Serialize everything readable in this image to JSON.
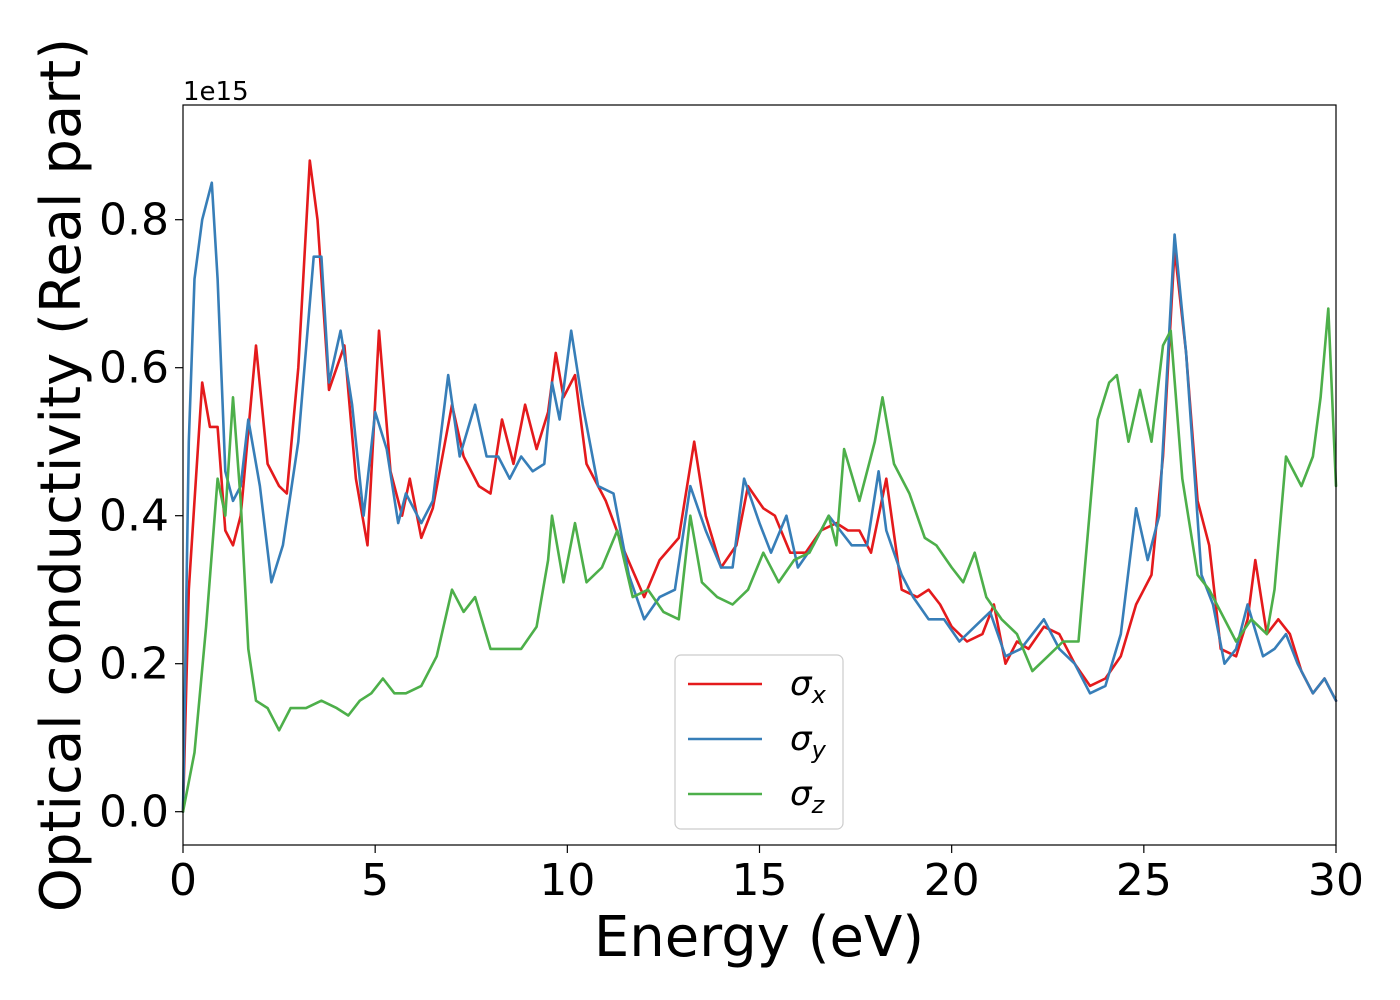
{
  "chart_data": {
    "type": "line",
    "xlabel": "Energy (eV)",
    "ylabel": "Optical conductivity (Real part)",
    "y_offset_label": "1e15",
    "xlim": [
      0,
      30
    ],
    "ylim": [
      -0.045,
      0.955
    ],
    "x_ticks": [
      0,
      5,
      10,
      15,
      20,
      25,
      30
    ],
    "x_tick_labels": [
      "0",
      "5",
      "10",
      "15",
      "20",
      "25",
      "30"
    ],
    "y_ticks": [
      0.0,
      0.2,
      0.4,
      0.6,
      0.8
    ],
    "y_tick_labels": [
      "0.0",
      "0.2",
      "0.4",
      "0.6",
      "0.8"
    ],
    "grid": false,
    "legend_position": "lower-center",
    "series": [
      {
        "name": "σx",
        "legend_base": "σ",
        "legend_sub": "x",
        "color": "#e41a1c",
        "x": [
          0,
          0.15,
          0.3,
          0.5,
          0.7,
          0.9,
          1.1,
          1.3,
          1.5,
          1.9,
          2.2,
          2.5,
          2.7,
          3.0,
          3.3,
          3.5,
          3.8,
          4.0,
          4.2,
          4.5,
          4.8,
          5.1,
          5.4,
          5.7,
          5.9,
          6.2,
          6.5,
          7.0,
          7.3,
          7.7,
          8.0,
          8.3,
          8.6,
          8.9,
          9.2,
          9.5,
          9.7,
          9.9,
          10.2,
          10.5,
          11.0,
          11.5,
          12.0,
          12.4,
          12.9,
          13.3,
          13.6,
          14.0,
          14.4,
          14.7,
          15.1,
          15.4,
          15.8,
          16.2,
          16.6,
          17.0,
          17.3,
          17.6,
          17.9,
          18.3,
          18.7,
          19.1,
          19.4,
          19.7,
          20.0,
          20.4,
          20.8,
          21.1,
          21.4,
          21.7,
          22.0,
          22.4,
          22.8,
          23.2,
          23.6,
          24.0,
          24.4,
          24.8,
          25.2,
          25.5,
          25.8,
          26.1,
          26.4,
          26.7,
          27.0,
          27.4,
          27.7,
          27.9,
          28.2,
          28.5,
          28.8,
          29.1,
          29.4,
          29.7,
          30.0
        ],
        "y": [
          0.0,
          0.3,
          0.42,
          0.58,
          0.52,
          0.52,
          0.38,
          0.36,
          0.4,
          0.63,
          0.47,
          0.44,
          0.43,
          0.6,
          0.88,
          0.8,
          0.57,
          0.6,
          0.63,
          0.45,
          0.36,
          0.65,
          0.46,
          0.4,
          0.45,
          0.37,
          0.41,
          0.55,
          0.48,
          0.44,
          0.43,
          0.53,
          0.47,
          0.55,
          0.49,
          0.54,
          0.62,
          0.56,
          0.59,
          0.47,
          0.42,
          0.35,
          0.29,
          0.34,
          0.37,
          0.5,
          0.4,
          0.33,
          0.36,
          0.44,
          0.41,
          0.4,
          0.35,
          0.35,
          0.38,
          0.39,
          0.38,
          0.38,
          0.35,
          0.45,
          0.3,
          0.29,
          0.3,
          0.28,
          0.25,
          0.23,
          0.24,
          0.28,
          0.2,
          0.23,
          0.22,
          0.25,
          0.24,
          0.2,
          0.17,
          0.18,
          0.21,
          0.28,
          0.32,
          0.48,
          0.76,
          0.62,
          0.42,
          0.36,
          0.22,
          0.21,
          0.26,
          0.34,
          0.24,
          0.26,
          0.24,
          0.19,
          0.16,
          0.18,
          0.15
        ]
      },
      {
        "name": "σy",
        "legend_base": "σ",
        "legend_sub": "y",
        "color": "#377eb8",
        "x": [
          0,
          0.15,
          0.3,
          0.5,
          0.75,
          0.9,
          1.1,
          1.3,
          1.5,
          1.7,
          2.0,
          2.3,
          2.6,
          3.0,
          3.4,
          3.6,
          3.8,
          4.1,
          4.4,
          4.7,
          5.0,
          5.3,
          5.6,
          5.8,
          6.2,
          6.5,
          6.9,
          7.2,
          7.6,
          7.9,
          8.2,
          8.5,
          8.8,
          9.1,
          9.4,
          9.6,
          9.8,
          10.1,
          10.4,
          10.8,
          11.2,
          11.6,
          12.0,
          12.4,
          12.8,
          13.2,
          13.6,
          14.0,
          14.3,
          14.6,
          15.0,
          15.3,
          15.7,
          16.0,
          16.4,
          16.8,
          17.1,
          17.4,
          17.8,
          18.1,
          18.3,
          18.7,
          19.0,
          19.4,
          19.8,
          20.2,
          20.6,
          21.0,
          21.4,
          21.8,
          22.1,
          22.4,
          22.8,
          23.2,
          23.6,
          24.0,
          24.4,
          24.8,
          25.1,
          25.4,
          25.8,
          26.1,
          26.5,
          26.8,
          27.1,
          27.4,
          27.7,
          28.1,
          28.4,
          28.7,
          29.0,
          29.4,
          29.7,
          30.0
        ],
        "y": [
          0.0,
          0.5,
          0.72,
          0.8,
          0.85,
          0.72,
          0.46,
          0.42,
          0.44,
          0.53,
          0.44,
          0.31,
          0.36,
          0.5,
          0.75,
          0.75,
          0.58,
          0.65,
          0.55,
          0.4,
          0.54,
          0.49,
          0.39,
          0.43,
          0.39,
          0.42,
          0.59,
          0.48,
          0.55,
          0.48,
          0.48,
          0.45,
          0.48,
          0.46,
          0.47,
          0.58,
          0.53,
          0.65,
          0.55,
          0.44,
          0.43,
          0.32,
          0.26,
          0.29,
          0.3,
          0.44,
          0.38,
          0.33,
          0.33,
          0.45,
          0.39,
          0.35,
          0.4,
          0.33,
          0.36,
          0.4,
          0.38,
          0.36,
          0.36,
          0.46,
          0.38,
          0.32,
          0.29,
          0.26,
          0.26,
          0.23,
          0.25,
          0.27,
          0.21,
          0.22,
          0.24,
          0.26,
          0.22,
          0.2,
          0.16,
          0.17,
          0.24,
          0.41,
          0.34,
          0.4,
          0.78,
          0.62,
          0.32,
          0.28,
          0.2,
          0.22,
          0.28,
          0.21,
          0.22,
          0.24,
          0.2,
          0.16,
          0.18,
          0.15
        ]
      },
      {
        "name": "σz",
        "legend_base": "σ",
        "legend_sub": "z",
        "color": "#4daf4a",
        "x": [
          0,
          0.3,
          0.6,
          0.9,
          1.1,
          1.3,
          1.5,
          1.7,
          1.9,
          2.2,
          2.5,
          2.8,
          3.2,
          3.6,
          4.0,
          4.3,
          4.6,
          4.9,
          5.2,
          5.5,
          5.8,
          6.2,
          6.6,
          7.0,
          7.3,
          7.6,
          8.0,
          8.4,
          8.8,
          9.2,
          9.5,
          9.6,
          9.9,
          10.2,
          10.5,
          10.9,
          11.3,
          11.7,
          12.1,
          12.5,
          12.9,
          13.2,
          13.5,
          13.9,
          14.3,
          14.7,
          15.1,
          15.5,
          15.9,
          16.3,
          16.8,
          17.0,
          17.2,
          17.6,
          18.0,
          18.2,
          18.5,
          18.9,
          19.3,
          19.6,
          20.0,
          20.3,
          20.6,
          20.9,
          21.3,
          21.7,
          22.1,
          22.5,
          22.9,
          23.3,
          23.8,
          24.1,
          24.3,
          24.6,
          24.9,
          25.2,
          25.5,
          25.7,
          26.0,
          26.4,
          26.7,
          27.0,
          27.4,
          27.8,
          28.2,
          28.4,
          28.7,
          29.1,
          29.4,
          29.6,
          29.8,
          30.0
        ],
        "y": [
          0.0,
          0.08,
          0.25,
          0.45,
          0.4,
          0.56,
          0.42,
          0.22,
          0.15,
          0.14,
          0.11,
          0.14,
          0.14,
          0.15,
          0.14,
          0.13,
          0.15,
          0.16,
          0.18,
          0.16,
          0.16,
          0.17,
          0.21,
          0.3,
          0.27,
          0.29,
          0.22,
          0.22,
          0.22,
          0.25,
          0.34,
          0.4,
          0.31,
          0.39,
          0.31,
          0.33,
          0.38,
          0.29,
          0.3,
          0.27,
          0.26,
          0.4,
          0.31,
          0.29,
          0.28,
          0.3,
          0.35,
          0.31,
          0.34,
          0.35,
          0.4,
          0.36,
          0.49,
          0.42,
          0.5,
          0.56,
          0.47,
          0.43,
          0.37,
          0.36,
          0.33,
          0.31,
          0.35,
          0.29,
          0.26,
          0.24,
          0.19,
          0.21,
          0.23,
          0.23,
          0.53,
          0.58,
          0.59,
          0.5,
          0.57,
          0.5,
          0.63,
          0.65,
          0.45,
          0.32,
          0.3,
          0.27,
          0.23,
          0.26,
          0.24,
          0.3,
          0.48,
          0.44,
          0.48,
          0.56,
          0.68,
          0.44
        ]
      }
    ]
  }
}
